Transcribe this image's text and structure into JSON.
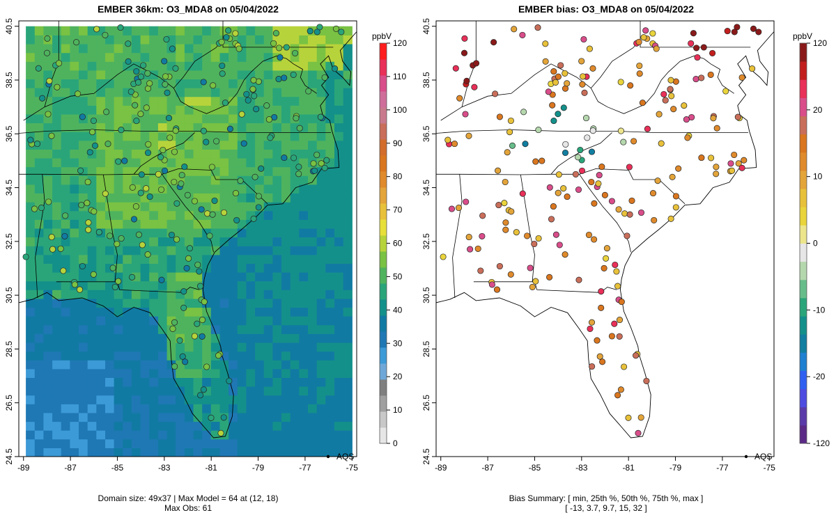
{
  "left_panel": {
    "title": "EMBER 36km: O3_MDA8 on 05/04/2022",
    "footer_line1": "Domain size: 49x37 | Max Model = 64 at (12, 18)",
    "footer_line2": "Max Obs: 61",
    "legend_label": "AQS",
    "colorbar_unit": "ppbV",
    "colorbar_ticks": [
      "0",
      "10",
      "20",
      "30",
      "40",
      "50",
      "60",
      "70",
      "80",
      "90",
      "100",
      "110",
      "120"
    ],
    "colorbar_colors": [
      "#e6e6e6",
      "#c8c8c8",
      "#a0a0a0",
      "#7f7f7f",
      "#6fa8d8",
      "#3c9ad6",
      "#1f78b4",
      "#117aa3",
      "#14908a",
      "#2aa57a",
      "#4fb35e",
      "#79c243",
      "#b7d33b",
      "#e7df3a",
      "#e8c13a",
      "#e3a43a",
      "#df8a2c",
      "#d9761f",
      "#d26d2c",
      "#c96e5a",
      "#c87a8c",
      "#cf6e9a",
      "#d84d8a",
      "#e83058",
      "#ff1d1d"
    ]
  },
  "right_panel": {
    "title": "EMBER bias: O3_MDA8 on 05/04/2022",
    "footer_line1": "Bias Summary: [ min, 25th %, 50th %, 75th %, max ]",
    "footer_line2": "[ -13,   3.7,   9.7,   15,   32 ]",
    "legend_label": "AQS",
    "colorbar_unit": "ppbV",
    "colorbar_ticks": [
      "-120",
      "-20",
      "-10",
      "0",
      "10",
      "20",
      "120"
    ],
    "colorbar_colors": [
      "#5b2a86",
      "#5a3aa8",
      "#4d4be0",
      "#2f5ff0",
      "#1f7fd0",
      "#127ea0",
      "#14908a",
      "#2aa57a",
      "#67bd8a",
      "#b5d7ad",
      "#e6e6e6",
      "#ece58c",
      "#e9d43c",
      "#e8c13a",
      "#e3a43a",
      "#df8a2c",
      "#d9761f",
      "#c96e5a",
      "#d84d8a",
      "#e83058",
      "#c21e1e",
      "#8a1a1a"
    ]
  },
  "axes": {
    "x_ticks": [
      "-89",
      "-87",
      "-85",
      "-83",
      "-81",
      "-79",
      "-77",
      "-75"
    ],
    "y_ticks": [
      "24.5",
      "26.5",
      "28.5",
      "30.5",
      "32.5",
      "34.5",
      "36.5",
      "38.5",
      "40.5"
    ],
    "xlim": [
      -89.2,
      -74.8
    ],
    "ylim": [
      24.5,
      40.7
    ]
  },
  "chart_data": [
    {
      "type": "heatmap",
      "title": "EMBER 36km: O3_MDA8 on 05/04/2022",
      "variable": "O3_MDA8",
      "units": "ppbV",
      "color_range": [
        0,
        120
      ],
      "domain_size": "49x37",
      "max_model": 64,
      "max_model_cell": [
        12,
        18
      ],
      "max_obs": 61,
      "marker_legend": "AQS"
    },
    {
      "type": "scatter",
      "title": "EMBER bias: O3_MDA8 on 05/04/2022",
      "variable": "O3_MDA8 bias",
      "units": "ppbV",
      "color_range": [
        -120,
        120
      ],
      "bias_summary": {
        "min": -13,
        "p25": 3.7,
        "p50": 9.7,
        "p75": 15,
        "max": 32
      },
      "marker_legend": "AQS"
    }
  ]
}
